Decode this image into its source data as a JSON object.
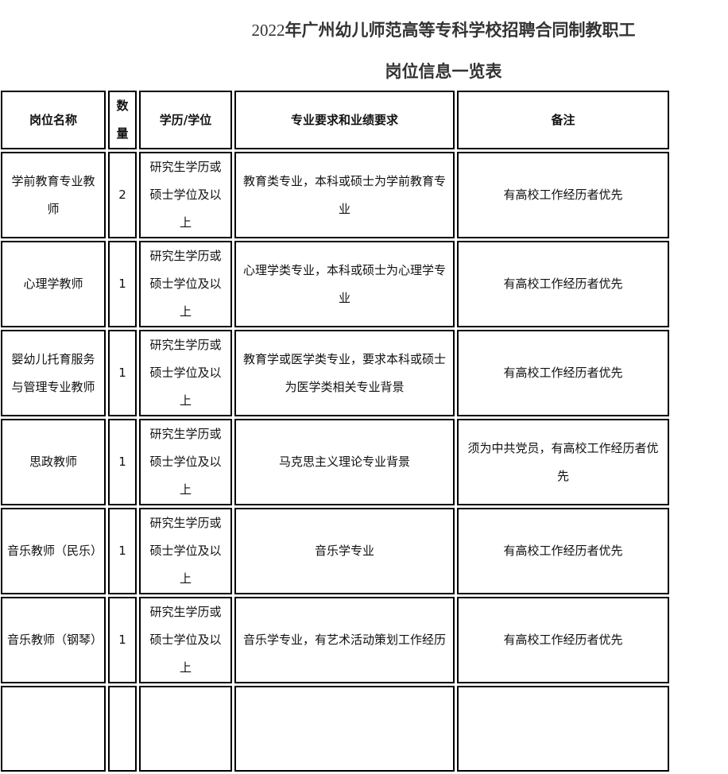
{
  "title": {
    "year": "2022",
    "line1_rest": "年广州幼儿师范高等专科学校招聘合同制教职工",
    "line2": "岗位信息一览表"
  },
  "table": {
    "headers": [
      "岗位名称",
      "数量",
      "学历/学位",
      "专业要求和业绩要求",
      "备注"
    ],
    "rows": [
      [
        "学前教育专业教师",
        "2",
        "研究生学历或硕士学位及以上",
        "教育类专业，本科或硕士为学前教育专业",
        "有高校工作经历者优先"
      ],
      [
        "心理学教师",
        "1",
        "研究生学历或硕士学位及以上",
        "心理学类专业，本科或硕士为心理学专业",
        "有高校工作经历者优先"
      ],
      [
        "婴幼儿托育服务与管理专业教师",
        "1",
        "研究生学历或硕士学位及以上",
        "教育学或医学类专业，要求本科或硕士为医学类相关专业背景",
        "有高校工作经历者优先"
      ],
      [
        "思政教师",
        "1",
        "研究生学历或硕士学位及以上",
        "马克思主义理论专业背景",
        "须为中共党员，有高校工作经历者优先"
      ],
      [
        "音乐教师（民乐）",
        "1",
        "研究生学历或硕士学位及以上",
        "音乐学专业",
        "有高校工作经历者优先"
      ],
      [
        "音乐教师（钢琴）",
        "1",
        "研究生学历或硕士学位及以上",
        "音乐学专业，有艺术活动策划工作经历",
        "有高校工作经历者优先"
      ],
      [
        "",
        "",
        "",
        "",
        ""
      ]
    ]
  }
}
